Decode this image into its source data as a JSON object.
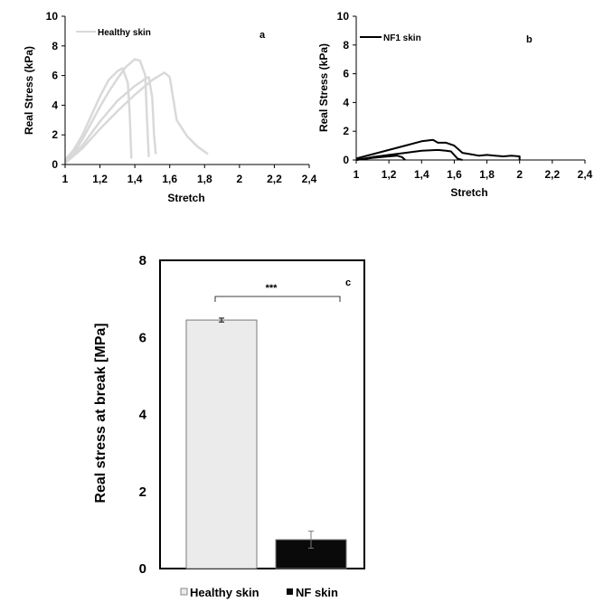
{
  "chart_data": [
    {
      "id": "a",
      "type": "line",
      "panel_label": "a",
      "xlabel": "Stretch",
      "ylabel": "Real Stress  (kPa)",
      "xlim": [
        1,
        2.4
      ],
      "ylim": [
        0,
        10
      ],
      "x_ticks": [
        "1",
        "1,2",
        "1,4",
        "1,6",
        "1,8",
        "2",
        "2,2",
        "2,4"
      ],
      "y_ticks": [
        "0",
        "2",
        "4",
        "6",
        "8",
        "10"
      ],
      "legend": {
        "label": "Healthy skin",
        "placement": "top-left"
      },
      "grid": false,
      "color": "#d9d9d9",
      "series": [
        {
          "x": [
            1.0,
            1.05,
            1.1,
            1.15,
            1.2,
            1.25,
            1.3,
            1.33,
            1.36,
            1.37,
            1.38
          ],
          "y": [
            0.3,
            1.0,
            2.0,
            3.3,
            4.6,
            5.7,
            6.3,
            6.5,
            5.5,
            3.5,
            0.4
          ]
        },
        {
          "x": [
            1.0,
            1.05,
            1.1,
            1.15,
            1.2,
            1.25,
            1.3,
            1.35,
            1.4,
            1.43,
            1.46,
            1.47,
            1.48
          ],
          "y": [
            0.2,
            0.8,
            1.7,
            2.8,
            3.9,
            4.9,
            5.8,
            6.6,
            7.1,
            7.0,
            6.0,
            3.0,
            0.5
          ]
        },
        {
          "x": [
            1.0,
            1.1,
            1.2,
            1.3,
            1.4,
            1.45,
            1.48,
            1.5,
            1.51,
            1.52
          ],
          "y": [
            0.2,
            1.3,
            2.9,
            4.3,
            5.3,
            5.7,
            5.9,
            4.5,
            2.0,
            0.7
          ]
        },
        {
          "x": [
            1.0,
            1.1,
            1.2,
            1.3,
            1.4,
            1.5,
            1.57,
            1.6,
            1.64,
            1.7,
            1.76,
            1.82
          ],
          "y": [
            0.1,
            1.1,
            2.4,
            3.6,
            4.7,
            5.7,
            6.2,
            5.9,
            3.0,
            1.9,
            1.2,
            0.7
          ]
        }
      ]
    },
    {
      "id": "b",
      "type": "line",
      "panel_label": "b",
      "xlabel": "Stretch",
      "ylabel": "Real Stress  (kPa)",
      "xlim": [
        1,
        2.4
      ],
      "ylim": [
        0,
        10
      ],
      "x_ticks": [
        "1",
        "1,2",
        "1,4",
        "1,6",
        "1,8",
        "2",
        "2,2",
        "2,4"
      ],
      "y_ticks": [
        "0",
        "2",
        "4",
        "6",
        "8",
        "10"
      ],
      "legend": {
        "label": "NF1 skin",
        "placement": "top-left"
      },
      "grid": false,
      "color": "#000000",
      "series": [
        {
          "x": [
            1.0,
            1.1,
            1.2,
            1.3,
            1.4,
            1.47,
            1.5,
            1.55,
            1.6,
            1.65,
            1.7,
            1.75,
            1.8,
            1.85,
            1.9,
            1.95,
            2.0,
            2.0
          ],
          "y": [
            0.1,
            0.4,
            0.7,
            1.0,
            1.3,
            1.4,
            1.2,
            1.2,
            1.0,
            0.5,
            0.4,
            0.3,
            0.35,
            0.3,
            0.25,
            0.3,
            0.25,
            0.0
          ]
        },
        {
          "x": [
            1.0,
            1.1,
            1.2,
            1.3,
            1.4,
            1.5,
            1.55,
            1.58,
            1.62,
            1.65
          ],
          "y": [
            0.0,
            0.2,
            0.35,
            0.5,
            0.65,
            0.7,
            0.65,
            0.6,
            0.1,
            0.0
          ]
        },
        {
          "x": [
            1.0,
            1.1,
            1.2,
            1.25,
            1.28,
            1.3
          ],
          "y": [
            0.0,
            0.15,
            0.25,
            0.3,
            0.2,
            0.0
          ]
        }
      ]
    },
    {
      "id": "c",
      "type": "bar",
      "panel_label": "c",
      "categories": [
        "Healthy skin",
        "NF skin"
      ],
      "values": [
        6.45,
        0.75
      ],
      "errors": [
        0.05,
        0.22
      ],
      "colors": [
        "#ebebeb",
        "#0a0a0a"
      ],
      "ylabel": "Real stress at break [MPa]",
      "ylim": [
        0,
        8
      ],
      "y_ticks": [
        "0",
        "2",
        "4",
        "6",
        "8"
      ],
      "significance": "***",
      "legend": {
        "labels": [
          "Healthy skin",
          "NF skin"
        ],
        "placement": "bottom"
      },
      "grid": false
    }
  ]
}
